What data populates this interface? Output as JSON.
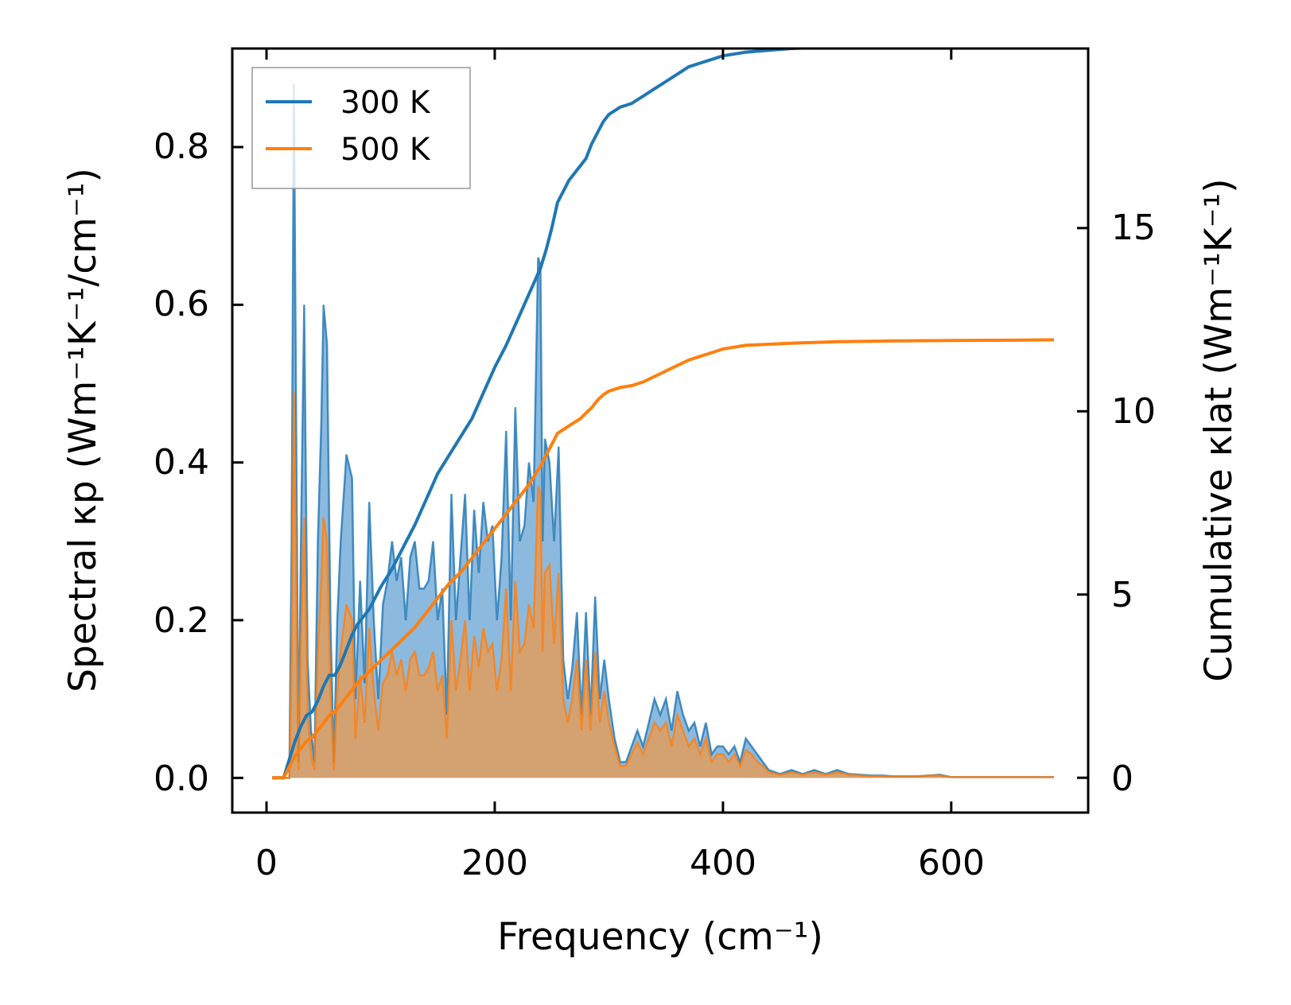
{
  "chart_data": {
    "type": "area+line",
    "xlabel": "Frequency (cm⁻¹)",
    "ylabel_left": "Spectral κp (Wm⁻¹K⁻¹/cm⁻¹)",
    "ylabel_right": "Cumulative κlat (Wm⁻¹K⁻¹)",
    "xlim": [
      -30,
      720
    ],
    "ylim_left": [
      -0.044,
      0.925
    ],
    "ylim_right": [
      -0.95,
      19.9
    ],
    "x_ticks": [
      0,
      200,
      400,
      600
    ],
    "y_left_ticks": [
      0.0,
      0.2,
      0.4,
      0.6,
      0.8
    ],
    "y_right_ticks": [
      0,
      5,
      10,
      15
    ],
    "x_tick_labels": [
      "0",
      "200",
      "400",
      "600"
    ],
    "y_left_tick_labels": [
      "0.0",
      "0.2",
      "0.4",
      "0.6",
      "0.8"
    ],
    "y_right_tick_labels": [
      "0",
      "5",
      "10",
      "15"
    ],
    "legend": {
      "position": "top-left",
      "entries": [
        "300 K",
        "500 K"
      ]
    },
    "colors": {
      "s300": "#1f77b4",
      "s500": "#ff7f0e",
      "fill300": "#5b9bd0",
      "fill500": "#d8a06a"
    },
    "series": [
      {
        "name": "300 K",
        "spectral": {
          "x": [
            5,
            15,
            20,
            22,
            24,
            26,
            28,
            30,
            33,
            36,
            39,
            42,
            45,
            48,
            50,
            53,
            56,
            59,
            62,
            65,
            70,
            75,
            78,
            82,
            86,
            90,
            94,
            98,
            102,
            106,
            110,
            114,
            118,
            122,
            126,
            130,
            134,
            138,
            142,
            146,
            150,
            154,
            158,
            162,
            166,
            170,
            174,
            178,
            182,
            186,
            190,
            194,
            198,
            202,
            206,
            210,
            214,
            218,
            222,
            226,
            230,
            234,
            238,
            240,
            242,
            244,
            248,
            252,
            256,
            260,
            264,
            268,
            272,
            276,
            280,
            284,
            288,
            292,
            296,
            300,
            305,
            310,
            315,
            320,
            325,
            330,
            335,
            340,
            345,
            350,
            355,
            360,
            365,
            370,
            375,
            380,
            385,
            390,
            395,
            400,
            405,
            410,
            415,
            420,
            425,
            430,
            435,
            440,
            450,
            460,
            470,
            480,
            490,
            500,
            510,
            520,
            530,
            540,
            550,
            560,
            570,
            580,
            590,
            600,
            620,
            650,
            690
          ],
          "y": [
            0,
            0,
            0,
            0.3,
            0.88,
            0.45,
            0.02,
            0.28,
            0.6,
            0.15,
            0.06,
            0.02,
            0.3,
            0.45,
            0.6,
            0.55,
            0.2,
            0.02,
            0.2,
            0.3,
            0.41,
            0.38,
            0.1,
            0.25,
            0.12,
            0.35,
            0.2,
            0.1,
            0.22,
            0.25,
            0.3,
            0.25,
            0.28,
            0.2,
            0.28,
            0.3,
            0.24,
            0.24,
            0.25,
            0.3,
            0.2,
            0.24,
            0.08,
            0.36,
            0.2,
            0.28,
            0.36,
            0.2,
            0.34,
            0.26,
            0.35,
            0.3,
            0.32,
            0.2,
            0.28,
            0.44,
            0.2,
            0.47,
            0.3,
            0.32,
            0.4,
            0.35,
            0.66,
            0.65,
            0.3,
            0.43,
            0.4,
            0.3,
            0.42,
            0.15,
            0.1,
            0.14,
            0.21,
            0.08,
            0.21,
            0.08,
            0.23,
            0.1,
            0.15,
            0.1,
            0.05,
            0.02,
            0.02,
            0.04,
            0.06,
            0.04,
            0.07,
            0.1,
            0.08,
            0.1,
            0.06,
            0.11,
            0.08,
            0.06,
            0.07,
            0.04,
            0.07,
            0.03,
            0.04,
            0.04,
            0.03,
            0.04,
            0.02,
            0.05,
            0.04,
            0.03,
            0.02,
            0.01,
            0.005,
            0.01,
            0.005,
            0.01,
            0.005,
            0.01,
            0.005,
            0.004,
            0.003,
            0.003,
            0.002,
            0.002,
            0.002,
            0.003,
            0.004,
            0.001,
            0.001,
            0.001,
            0.001
          ]
        },
        "cumulative": {
          "x": [
            5,
            15,
            20,
            25,
            30,
            35,
            40,
            45,
            50,
            55,
            60,
            65,
            70,
            75,
            80,
            90,
            100,
            110,
            120,
            130,
            140,
            150,
            160,
            170,
            180,
            190,
            200,
            210,
            220,
            230,
            240,
            245,
            250,
            255,
            260,
            265,
            270,
            275,
            280,
            285,
            290,
            295,
            300,
            310,
            320,
            330,
            340,
            350,
            360,
            370,
            380,
            390,
            400,
            420,
            440,
            460,
            480,
            500,
            550,
            600,
            650,
            690
          ],
          "y": [
            0,
            0,
            0.5,
            1.0,
            1.4,
            1.7,
            1.8,
            2.1,
            2.5,
            2.8,
            2.8,
            3.1,
            3.5,
            3.9,
            4.2,
            4.6,
            5.2,
            5.7,
            6.3,
            6.9,
            7.6,
            8.3,
            8.8,
            9.3,
            9.8,
            10.5,
            11.2,
            11.8,
            12.5,
            13.2,
            13.9,
            14.4,
            15.0,
            15.7,
            16.0,
            16.3,
            16.5,
            16.7,
            16.9,
            17.3,
            17.6,
            17.9,
            18.1,
            18.3,
            18.4,
            18.6,
            18.8,
            19.0,
            19.2,
            19.4,
            19.5,
            19.6,
            19.7,
            19.8,
            19.85,
            19.9,
            19.92,
            19.95,
            19.97,
            19.98,
            19.99,
            20.0
          ]
        }
      },
      {
        "name": "500 K",
        "spectral": {
          "x": [
            5,
            15,
            20,
            22,
            24,
            26,
            28,
            30,
            33,
            36,
            39,
            42,
            45,
            48,
            50,
            53,
            56,
            59,
            62,
            65,
            70,
            75,
            78,
            82,
            86,
            90,
            94,
            98,
            102,
            106,
            110,
            114,
            118,
            122,
            126,
            130,
            134,
            138,
            142,
            146,
            150,
            154,
            158,
            162,
            166,
            170,
            174,
            178,
            182,
            186,
            190,
            194,
            198,
            202,
            206,
            210,
            214,
            218,
            222,
            226,
            230,
            234,
            238,
            240,
            242,
            244,
            248,
            252,
            256,
            260,
            264,
            268,
            272,
            276,
            280,
            284,
            288,
            292,
            296,
            300,
            305,
            310,
            315,
            320,
            325,
            330,
            335,
            340,
            345,
            350,
            355,
            360,
            365,
            370,
            375,
            380,
            385,
            390,
            395,
            400,
            405,
            410,
            415,
            420,
            425,
            430,
            435,
            440,
            450,
            460,
            470,
            480,
            490,
            500,
            510,
            520,
            530,
            540,
            550,
            560,
            570,
            580,
            590,
            600,
            620,
            650,
            690
          ],
          "y": [
            0,
            0,
            0,
            0.15,
            0.49,
            0.25,
            0.01,
            0.16,
            0.33,
            0.08,
            0.03,
            0.01,
            0.16,
            0.25,
            0.33,
            0.3,
            0.11,
            0.01,
            0.11,
            0.16,
            0.22,
            0.2,
            0.05,
            0.13,
            0.07,
            0.19,
            0.11,
            0.06,
            0.12,
            0.13,
            0.16,
            0.13,
            0.15,
            0.11,
            0.15,
            0.16,
            0.13,
            0.13,
            0.14,
            0.16,
            0.11,
            0.13,
            0.05,
            0.2,
            0.11,
            0.15,
            0.2,
            0.11,
            0.18,
            0.14,
            0.19,
            0.16,
            0.17,
            0.11,
            0.15,
            0.24,
            0.11,
            0.25,
            0.16,
            0.17,
            0.22,
            0.19,
            0.37,
            0.36,
            0.16,
            0.26,
            0.27,
            0.17,
            0.26,
            0.1,
            0.07,
            0.1,
            0.15,
            0.06,
            0.15,
            0.06,
            0.16,
            0.07,
            0.11,
            0.07,
            0.04,
            0.015,
            0.015,
            0.03,
            0.045,
            0.03,
            0.05,
            0.07,
            0.06,
            0.07,
            0.04,
            0.08,
            0.06,
            0.04,
            0.05,
            0.03,
            0.05,
            0.02,
            0.03,
            0.03,
            0.02,
            0.03,
            0.015,
            0.035,
            0.03,
            0.02,
            0.015,
            0.007,
            0.004,
            0.007,
            0.004,
            0.007,
            0.004,
            0.007,
            0.004,
            0.003,
            0.002,
            0.002,
            0.002,
            0.002,
            0.002,
            0.003,
            0.003,
            0.001,
            0.001,
            0.001,
            0.001
          ]
        },
        "cumulative": {
          "x": [
            5,
            15,
            20,
            25,
            30,
            35,
            40,
            45,
            50,
            55,
            60,
            65,
            70,
            75,
            80,
            90,
            100,
            110,
            120,
            130,
            140,
            150,
            160,
            170,
            180,
            190,
            200,
            210,
            220,
            230,
            240,
            245,
            250,
            255,
            260,
            265,
            270,
            275,
            280,
            285,
            290,
            295,
            300,
            310,
            320,
            330,
            340,
            350,
            360,
            370,
            380,
            390,
            400,
            420,
            440,
            460,
            480,
            500,
            550,
            600,
            650,
            690
          ],
          "y": [
            0,
            0,
            0.3,
            0.6,
            0.8,
            1.0,
            1.1,
            1.3,
            1.5,
            1.7,
            1.8,
            2.0,
            2.2,
            2.4,
            2.6,
            2.9,
            3.2,
            3.5,
            3.8,
            4.1,
            4.5,
            4.9,
            5.3,
            5.6,
            6.0,
            6.4,
            6.8,
            7.2,
            7.6,
            8.0,
            8.5,
            8.8,
            9.1,
            9.4,
            9.5,
            9.6,
            9.7,
            9.8,
            9.95,
            10.1,
            10.3,
            10.45,
            10.55,
            10.65,
            10.7,
            10.8,
            10.95,
            11.1,
            11.25,
            11.4,
            11.5,
            11.6,
            11.7,
            11.8,
            11.83,
            11.86,
            11.88,
            11.9,
            11.92,
            11.93,
            11.94,
            11.95
          ]
        }
      }
    ]
  }
}
